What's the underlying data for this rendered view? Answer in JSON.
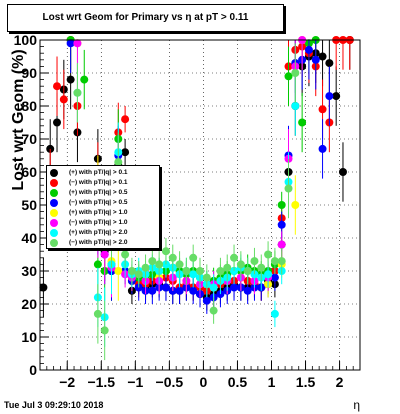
{
  "chart_data": {
    "type": "scatter",
    "title": "Lost wrt Geom for Primary vs   η at pT > 0.11",
    "ylabel": "Lost wrt Geom (%)",
    "xlabel": "η",
    "xlim": [
      -2.4,
      2.3
    ],
    "ylim": [
      0,
      100
    ],
    "x_ticks": [
      -2,
      -1.5,
      -1,
      -0.5,
      0,
      0.5,
      1,
      1.5,
      2
    ],
    "x_tick_labels": [
      "−2",
      "−1.5",
      "−1",
      "−0.5",
      "0",
      "0.5",
      "1",
      "1.5",
      "2"
    ],
    "y_ticks": [
      0,
      10,
      20,
      30,
      40,
      50,
      60,
      70,
      80,
      90,
      100
    ],
    "grid": true,
    "legend_position": "center-left",
    "series": [
      {
        "name": "(+) with pT/|q| > 0.1",
        "color": "#000000",
        "x": [
          -2.35,
          -2.25,
          -2.15,
          -2.05,
          -1.95,
          -1.85,
          -1.55,
          -1.45,
          -1.35,
          -1.25,
          -1.15,
          -1.05,
          -0.95,
          -0.85,
          -0.75,
          -0.65,
          -0.55,
          -0.45,
          -0.35,
          -0.25,
          -0.15,
          -0.05,
          0.05,
          0.15,
          0.25,
          0.35,
          0.45,
          0.55,
          0.65,
          0.75,
          0.85,
          0.95,
          1.05,
          1.15,
          1.25,
          1.35,
          1.45,
          1.55,
          1.65,
          1.75,
          1.85,
          1.95,
          2.05,
          2.15
        ],
        "y": [
          25,
          67,
          75,
          85,
          88,
          72,
          64,
          36,
          30,
          62,
          66,
          24,
          27,
          25,
          26,
          26,
          25,
          24,
          24,
          25,
          25,
          23,
          22,
          23,
          24,
          25,
          26,
          25,
          25,
          26,
          25,
          27,
          26,
          38,
          60,
          80,
          92,
          95,
          96,
          95,
          93,
          83,
          60,
          100
        ]
      },
      {
        "name": "(−) with pT/|q| > 0.1",
        "color": "#ff0000",
        "x": [
          -2.25,
          -2.15,
          -2.05,
          -1.95,
          -1.85,
          -1.55,
          -1.45,
          -1.35,
          -1.25,
          -1.15,
          -1.05,
          -0.95,
          -0.85,
          -0.75,
          -0.65,
          -0.55,
          -0.45,
          -0.35,
          -0.25,
          -0.15,
          -0.05,
          0.05,
          0.15,
          0.25,
          0.35,
          0.45,
          0.55,
          0.65,
          0.75,
          0.85,
          0.95,
          1.05,
          1.15,
          1.25,
          1.35,
          1.45,
          1.55,
          1.65,
          1.75,
          1.85,
          1.95,
          2.05,
          2.15
        ],
        "y": [
          58,
          86,
          82,
          100,
          80,
          60,
          42,
          32,
          72,
          76,
          27,
          26,
          26,
          27,
          27,
          28,
          27,
          25,
          26,
          25,
          25,
          24,
          25,
          26,
          27,
          27,
          28,
          27,
          26,
          25,
          28,
          30,
          46,
          92,
          97,
          98,
          96,
          92,
          79,
          75,
          100,
          100,
          100
        ]
      },
      {
        "name": "(+) with pT/|q| > 0.5",
        "color": "#00cc00",
        "x": [
          -1.95,
          -1.75,
          -1.55,
          -1.45,
          -1.35,
          -1.25,
          -1.15,
          -1.05,
          -0.95,
          -0.85,
          -0.75,
          -0.65,
          -0.55,
          -0.45,
          -0.35,
          -0.25,
          -0.15,
          -0.05,
          0.05,
          0.15,
          0.25,
          0.35,
          0.45,
          0.55,
          0.65,
          0.75,
          0.85,
          0.95,
          1.05,
          1.15,
          1.25,
          1.35,
          1.45,
          1.55,
          1.65
        ],
        "y": [
          100,
          88,
          32,
          30,
          30,
          70,
          30,
          27,
          28,
          28,
          29,
          30,
          30,
          31,
          30,
          29,
          30,
          28,
          26,
          27,
          28,
          29,
          30,
          30,
          31,
          30,
          29,
          30,
          32,
          50,
          89,
          93,
          75,
          99,
          100
        ]
      },
      {
        "name": "(−) with pT/|q| > 0.5",
        "color": "#0000ff",
        "x": [
          -1.95,
          -1.55,
          -1.45,
          -1.35,
          -1.25,
          -1.15,
          -1.05,
          -0.95,
          -0.85,
          -0.75,
          -0.65,
          -0.55,
          -0.45,
          -0.35,
          -0.25,
          -0.15,
          -0.05,
          0.05,
          0.15,
          0.25,
          0.35,
          0.45,
          0.55,
          0.65,
          0.75,
          0.85,
          0.95,
          1.05,
          1.15,
          1.25,
          1.35,
          1.45,
          1.55,
          1.65,
          1.75,
          1.85
        ],
        "y": [
          99,
          44,
          35,
          30,
          65,
          30,
          27,
          25,
          24,
          24,
          25,
          25,
          24,
          24,
          25,
          24,
          23,
          21,
          22,
          23,
          24,
          25,
          25,
          24,
          25,
          25,
          26,
          28,
          44,
          65,
          93,
          94,
          97,
          94,
          67,
          83
        ]
      },
      {
        "name": "(+) with pT/|q| > 1.0",
        "color": "#ffff00",
        "x": [
          -1.85,
          -1.55,
          -1.45,
          -1.35,
          -1.25,
          -1.05,
          -0.85,
          -0.65,
          -0.45,
          -0.25,
          -0.05,
          0.15,
          0.35,
          0.55,
          0.75,
          0.95,
          1.15,
          1.35,
          1.45
        ],
        "y": [
          99,
          56,
          38,
          33,
          30,
          28,
          27,
          28,
          28,
          27,
          26,
          25,
          27,
          28,
          27,
          26,
          32,
          50,
          100
        ]
      },
      {
        "name": "(−) with pT/|q| > 1.0",
        "color": "#ff00ff",
        "x": [
          -1.85,
          -1.55,
          -1.45,
          -1.35,
          -1.25,
          -1.15,
          -1.05,
          -0.85,
          -0.65,
          -0.45,
          -0.25,
          -0.05,
          0.15,
          0.35,
          0.55,
          0.75,
          0.95,
          1.15,
          1.25,
          1.35,
          1.45
        ],
        "y": [
          99,
          43,
          35,
          31,
          60,
          29,
          28,
          27,
          27,
          28,
          27,
          26,
          26,
          27,
          28,
          27,
          28,
          38,
          64,
          92,
          100
        ]
      },
      {
        "name": "(+) with pT/|q| > 2.0",
        "color": "#00ffff",
        "x": [
          -1.85,
          -1.55,
          -1.45,
          -1.35,
          -1.25,
          -1.15,
          -1.05,
          -0.95,
          -0.85,
          -0.75,
          -0.65,
          -0.55,
          -0.45,
          -0.35,
          -0.25,
          -0.15,
          -0.05,
          0.05,
          0.15,
          0.25,
          0.35,
          0.45,
          0.55,
          0.65,
          0.75,
          0.85,
          0.95,
          1.05,
          1.15,
          1.25,
          1.35
        ],
        "y": [
          84,
          22,
          16,
          32,
          66,
          32,
          29,
          30,
          29,
          31,
          30,
          32,
          31,
          29,
          30,
          29,
          28,
          26,
          25,
          27,
          28,
          30,
          31,
          30,
          29,
          28,
          29,
          17,
          30,
          57,
          80
        ]
      },
      {
        "name": "(−) with pT/|q| > 2.0",
        "color": "#66dd66",
        "x": [
          -1.85,
          -1.55,
          -1.45,
          -1.35,
          -1.25,
          -1.15,
          -1.05,
          -0.95,
          -0.85,
          -0.75,
          -0.65,
          -0.55,
          -0.45,
          -0.35,
          -0.25,
          -0.15,
          -0.05,
          0.05,
          0.15,
          0.25,
          0.35,
          0.45,
          0.55,
          0.65,
          0.75,
          0.85,
          0.95,
          1.05,
          1.15,
          1.25,
          1.35
        ],
        "y": [
          84,
          17,
          12,
          40,
          63,
          35,
          30,
          29,
          31,
          33,
          32,
          36,
          34,
          32,
          30,
          34,
          30,
          28,
          18,
          30,
          31,
          34,
          32,
          30,
          33,
          31,
          35,
          33,
          33,
          55,
          90
        ]
      }
    ]
  },
  "footer": {
    "timestamp": "Tue Jul  3 09:29:10 2018"
  }
}
